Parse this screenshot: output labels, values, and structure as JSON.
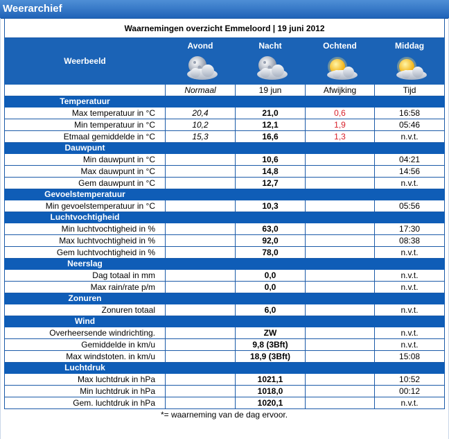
{
  "window_title": "Weerarchief",
  "table_title": "Waarnemingen overzicht Emmeloord | 19 juni 2012",
  "weerbeeld_label": "Weerbeeld",
  "periods": [
    {
      "label": "Avond",
      "icon": "moon-cloud-icon"
    },
    {
      "label": "Nacht",
      "icon": "moon-cloud-icon"
    },
    {
      "label": "Ochtend",
      "icon": "sun-cloud-icon"
    },
    {
      "label": "Middag",
      "icon": "sun-cloud-icon"
    }
  ],
  "subheader": {
    "normaal": "Normaal",
    "date": "19 jun",
    "afwijking": "Afwijking",
    "tijd": "Tijd"
  },
  "sections": [
    {
      "title": "Temperatuur",
      "rows": [
        {
          "label": "Max temperatuur in °C",
          "normaal": "20,4",
          "value": "21,0",
          "afwijking": "0,6",
          "tijd": "16:58"
        },
        {
          "label": "Min temperatuur in °C",
          "normaal": "10,2",
          "value": "12,1",
          "afwijking": "1,9",
          "tijd": "05:46"
        },
        {
          "label": "Etmaal gemiddelde in °C",
          "normaal": "15,3",
          "value": "16,6",
          "afwijking": "1,3",
          "tijd": "n.v.t."
        }
      ]
    },
    {
      "title": "Dauwpunt",
      "rows": [
        {
          "label": "Min dauwpunt in °C",
          "normaal": "",
          "value": "10,6",
          "afwijking": "",
          "tijd": "04:21"
        },
        {
          "label": "Max dauwpunt in °C",
          "normaal": "",
          "value": "14,8",
          "afwijking": "",
          "tijd": "14:56"
        },
        {
          "label": "Gem dauwpunt in °C",
          "normaal": "",
          "value": "12,7",
          "afwijking": "",
          "tijd": "n.v.t."
        }
      ]
    },
    {
      "title": "Gevoelstemperatuur",
      "rows": [
        {
          "label": "Min gevoelstemperatuur in °C",
          "normaal": "",
          "value": "10,3",
          "afwijking": "",
          "tijd": "05:56"
        }
      ]
    },
    {
      "title": "Luchtvochtigheid",
      "rows": [
        {
          "label": "Min luchtvochtigheid in %",
          "normaal": "",
          "value": "63,0",
          "afwijking": "",
          "tijd": "17:30"
        },
        {
          "label": "Max luchtvochtigheid in %",
          "normaal": "",
          "value": "92,0",
          "afwijking": "",
          "tijd": "08:38"
        },
        {
          "label": "Gem luchtvochtigheid in %",
          "normaal": "",
          "value": "78,0",
          "afwijking": "",
          "tijd": "n.v.t."
        }
      ]
    },
    {
      "title": "Neerslag",
      "rows": [
        {
          "label": "Dag totaal in mm",
          "normaal": "",
          "value": "0,0",
          "afwijking": "",
          "tijd": "n.v.t."
        },
        {
          "label": "Max rain/rate p/m",
          "normaal": "",
          "value": "0,0",
          "afwijking": "",
          "tijd": "n.v.t."
        }
      ]
    },
    {
      "title": "Zonuren",
      "rows": [
        {
          "label": "Zonuren totaal",
          "normaal": "",
          "value": "6,0",
          "afwijking": "",
          "tijd": "n.v.t."
        }
      ]
    },
    {
      "title": "Wind",
      "rows": [
        {
          "label": "Overheersende windrichting.",
          "normaal": "",
          "value": "ZW",
          "afwijking": "",
          "tijd": "n.v.t."
        },
        {
          "label": "Gemiddelde in km/u",
          "normaal": "",
          "value": "9,8 (3Bft)",
          "afwijking": "",
          "tijd": "n.v.t."
        },
        {
          "label": "Max windstoten. in km/u",
          "normaal": "",
          "value": "18,9 (3Bft)",
          "afwijking": "",
          "tijd": "15:08"
        }
      ]
    },
    {
      "title": "Luchtdruk",
      "rows": [
        {
          "label": "Max luchtdruk in hPa",
          "normaal": "",
          "value": "1021,1",
          "afwijking": "",
          "tijd": "10:52"
        },
        {
          "label": "Min luchtdruk in hPa",
          "normaal": "",
          "value": "1018,0",
          "afwijking": "",
          "tijd": "00:12"
        },
        {
          "label": "Gem. luchtdruk in hPa",
          "normaal": "",
          "value": "1020,1",
          "afwijking": "",
          "tijd": "n.v.t."
        }
      ]
    }
  ],
  "footnote": "*= waarneming van de dag ervoor.",
  "colors": {
    "header_blue": "#1b63b6",
    "border_blue": "#1a5aa8",
    "deviation_red": "#d8202a"
  }
}
